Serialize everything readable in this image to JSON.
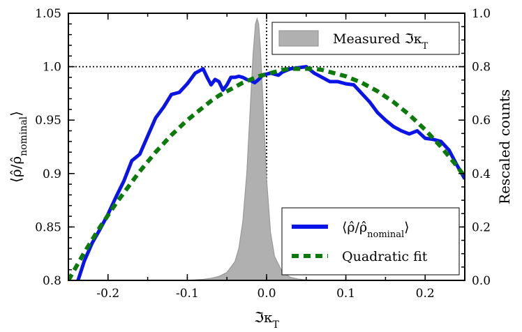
{
  "chart_data": {
    "type": "line",
    "xlabel": "ℑκ_T",
    "ylabel": "⟨ρ̂/ρ̂_nominal⟩",
    "y2label": "Rescaled counts",
    "xlim": [
      -0.25,
      0.25
    ],
    "ylim": [
      0.8,
      1.05
    ],
    "y2lim": [
      0.0,
      1.0
    ],
    "x_ticks": [
      -0.2,
      -0.1,
      0.0,
      0.1,
      0.2
    ],
    "x_tick_labels": [
      "-0.2",
      "-0.1",
      "0.0",
      "0.1",
      "0.2"
    ],
    "y_ticks": [
      0.8,
      0.85,
      0.9,
      0.95,
      1.0,
      1.05
    ],
    "y_tick_labels": [
      "0.8",
      "0.85",
      "0.9",
      "0.95",
      "1.0",
      "1.05"
    ],
    "y2_ticks": [
      0.0,
      0.2,
      0.4,
      0.6,
      0.8,
      1.0
    ],
    "y2_tick_labels": [
      "0.0",
      "0.2",
      "0.4",
      "0.6",
      "0.8",
      "1.0"
    ],
    "reference_lines": {
      "horizontal_y": 1.0,
      "vertical_x": 0.0,
      "style": "dotted"
    },
    "series": [
      {
        "name": "⟨ρ̂/ρ̂_nominal⟩",
        "kind": "line",
        "axis": "left",
        "color": "#0a14e6",
        "x": [
          -0.24,
          -0.23,
          -0.22,
          -0.21,
          -0.2,
          -0.19,
          -0.18,
          -0.17,
          -0.16,
          -0.15,
          -0.14,
          -0.13,
          -0.12,
          -0.11,
          -0.1,
          -0.09,
          -0.08,
          -0.075,
          -0.07,
          -0.065,
          -0.06,
          -0.055,
          -0.05,
          -0.045,
          -0.04,
          -0.035,
          -0.03,
          -0.025,
          -0.02,
          -0.015,
          -0.01,
          -0.005,
          0.0,
          0.005,
          0.01,
          0.015,
          0.02,
          0.03,
          0.04,
          0.05,
          0.06,
          0.07,
          0.08,
          0.09,
          0.1,
          0.11,
          0.12,
          0.13,
          0.14,
          0.15,
          0.16,
          0.17,
          0.18,
          0.19,
          0.2,
          0.21,
          0.22,
          0.23,
          0.24,
          0.25
        ],
        "y": [
          0.795,
          0.818,
          0.835,
          0.848,
          0.862,
          0.878,
          0.893,
          0.912,
          0.918,
          0.935,
          0.952,
          0.962,
          0.974,
          0.976,
          0.984,
          0.994,
          0.998,
          0.99,
          0.983,
          0.988,
          0.986,
          0.978,
          0.983,
          0.99,
          0.99,
          0.991,
          0.99,
          0.988,
          0.987,
          0.985,
          0.988,
          0.992,
          0.993,
          0.994,
          0.993,
          0.992,
          0.995,
          0.998,
          0.999,
          1.0,
          0.994,
          0.99,
          0.986,
          0.986,
          0.984,
          0.983,
          0.975,
          0.967,
          0.957,
          0.95,
          0.944,
          0.94,
          0.937,
          0.94,
          0.933,
          0.932,
          0.93,
          0.922,
          0.908,
          0.895
        ]
      },
      {
        "name": "Quadratic fit",
        "kind": "dashed-line",
        "axis": "left",
        "color": "#0b7a0b",
        "x": [
          -0.25,
          -0.24,
          -0.23,
          -0.22,
          -0.21,
          -0.2,
          -0.19,
          -0.18,
          -0.17,
          -0.16,
          -0.15,
          -0.14,
          -0.13,
          -0.12,
          -0.11,
          -0.1,
          -0.09,
          -0.08,
          -0.07,
          -0.06,
          -0.05,
          -0.04,
          -0.03,
          -0.02,
          -0.01,
          0.0,
          0.01,
          0.02,
          0.03,
          0.04,
          0.05,
          0.06,
          0.07,
          0.08,
          0.09,
          0.1,
          0.11,
          0.12,
          0.13,
          0.14,
          0.15,
          0.16,
          0.17,
          0.18,
          0.19,
          0.2,
          0.21,
          0.22,
          0.23,
          0.24,
          0.25
        ],
        "y": [
          0.8,
          0.813,
          0.826,
          0.838,
          0.85,
          0.861,
          0.872,
          0.882,
          0.892,
          0.902,
          0.911,
          0.92,
          0.928,
          0.936,
          0.943,
          0.95,
          0.956,
          0.962,
          0.968,
          0.973,
          0.977,
          0.981,
          0.985,
          0.988,
          0.991,
          0.993,
          0.995,
          0.997,
          0.998,
          0.998,
          0.998,
          0.998,
          0.997,
          0.995,
          0.993,
          0.991,
          0.988,
          0.985,
          0.981,
          0.977,
          0.972,
          0.967,
          0.961,
          0.955,
          0.948,
          0.941,
          0.933,
          0.925,
          0.916,
          0.907,
          0.897
        ]
      },
      {
        "name": "Measured ℑκ_T",
        "kind": "filled-histogram",
        "axis": "right",
        "color": "#b0b0b0",
        "x": [
          -0.1,
          -0.09,
          -0.08,
          -0.07,
          -0.06,
          -0.05,
          -0.04,
          -0.035,
          -0.03,
          -0.025,
          -0.02,
          -0.017,
          -0.014,
          -0.012,
          -0.01,
          -0.008,
          -0.005,
          0.0,
          0.005,
          0.01,
          0.02,
          0.03,
          0.04,
          0.05,
          0.06,
          0.07
        ],
        "y": [
          0.0,
          0.002,
          0.004,
          0.008,
          0.015,
          0.03,
          0.07,
          0.12,
          0.22,
          0.4,
          0.68,
          0.85,
          0.96,
          0.98,
          0.96,
          0.88,
          0.7,
          0.38,
          0.18,
          0.09,
          0.03,
          0.012,
          0.005,
          0.002,
          0.001,
          0.0
        ]
      }
    ],
    "legends": [
      {
        "placement": "top-right",
        "entries": [
          "Measured ℑκ_T"
        ]
      },
      {
        "placement": "bottom-right",
        "entries": [
          "⟨ρ̂/ρ̂_nominal⟩",
          "Quadratic fit"
        ]
      }
    ]
  }
}
